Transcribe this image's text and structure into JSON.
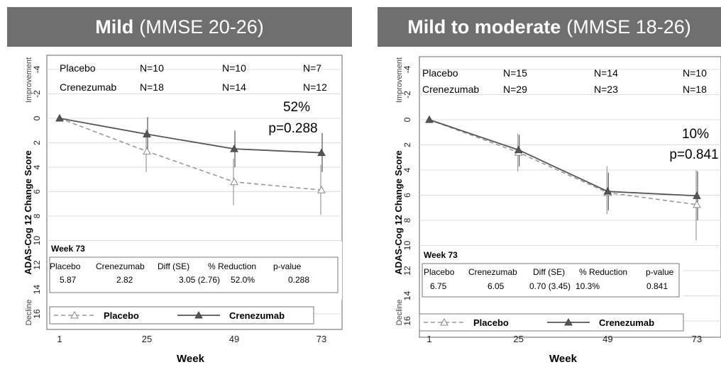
{
  "panels": [
    {
      "title_bold": "Mild",
      "title_rest": "(MMSE 20-26)",
      "counts": {
        "placebo_label": "Placebo",
        "crenezumab_label": "Crenezumab",
        "placebo": [
          "N=10",
          "N=10",
          "N=7"
        ],
        "crenezumab": [
          "N=18",
          "N=14",
          "N=12"
        ]
      },
      "annotation": [
        "52%",
        "p=0.288"
      ],
      "table": {
        "heading": "Week 73",
        "headers": [
          "Placebo",
          "Crenezumab",
          "Diff (SE)",
          "% Reduction",
          "p-value"
        ],
        "values": [
          "5.87",
          "2.82",
          "3.05 (2.76)",
          "52.0%",
          "0.288"
        ]
      }
    },
    {
      "title_bold": "Mild to moderate",
      "title_rest": "(MMSE 18-26)",
      "counts": {
        "placebo_label": "Placebo",
        "crenezumab_label": "Crenezumab",
        "placebo": [
          "N=15",
          "N=14",
          "N=10"
        ],
        "crenezumab": [
          "N=29",
          "N=23",
          "N=18"
        ]
      },
      "annotation": [
        "10%",
        "p=0.841"
      ],
      "table": {
        "heading": "Week 73",
        "headers": [
          "Placebo",
          "Crenezumab",
          "Diff (SE)",
          "% Reduction",
          "p-value"
        ],
        "values": [
          "6.75",
          "6.05",
          "0.70 (3.45)",
          "10.3%",
          "0.841"
        ]
      }
    }
  ],
  "y_axis_label": "ADAS-Cog 12 Change Score",
  "improvement_label": "Improvement",
  "decline_label": "Decline",
  "x_axis_label": "Week",
  "legend": [
    "Placebo",
    "Crenezumab"
  ],
  "chart_data": [
    {
      "type": "line",
      "title": "Mild (MMSE 20-26)",
      "xlabel": "Week",
      "ylabel": "ADAS-Cog 12 Change Score",
      "x": [
        1,
        25,
        49,
        73
      ],
      "y_ticks": [
        -4,
        -2,
        0,
        2,
        4,
        6,
        8,
        10,
        12,
        14,
        16
      ],
      "y_tick_labels": [
        "-4",
        "-2",
        "0",
        "2",
        "4",
        "6",
        "8",
        "10",
        "12",
        "14",
        "16"
      ],
      "ylim": [
        -4.5,
        17
      ],
      "y_inverted": true,
      "grid": true,
      "series": [
        {
          "name": "Placebo",
          "style": "dashed",
          "marker": "open-triangle",
          "color": "#999999",
          "values": [
            0,
            2.7,
            5.2,
            5.87
          ],
          "error_low": [
            0,
            0.9,
            3.3,
            3.8
          ],
          "error_high": [
            0,
            4.4,
            7.1,
            7.9
          ]
        },
        {
          "name": "Crenezumab",
          "style": "solid",
          "marker": "filled-triangle",
          "color": "#555555",
          "values": [
            0,
            1.3,
            2.5,
            2.82
          ],
          "error_low": [
            0,
            -0.1,
            1.0,
            1.2
          ],
          "error_high": [
            0,
            2.7,
            4.0,
            4.4
          ]
        }
      ]
    },
    {
      "type": "line",
      "title": "Mild to moderate (MMSE 18-26)",
      "xlabel": "Week",
      "ylabel": "ADAS-Cog 12 Change Score",
      "x": [
        1,
        25,
        49,
        73
      ],
      "y_ticks": [
        -4,
        -2,
        0,
        2,
        4,
        6,
        8,
        10,
        12,
        14,
        16
      ],
      "y_tick_labels": [
        "-4",
        "-2",
        "0",
        "2",
        "4",
        "6",
        "8",
        "10",
        "12",
        "14",
        "16"
      ],
      "ylim": [
        -4.5,
        17
      ],
      "y_inverted": true,
      "grid": true,
      "series": [
        {
          "name": "Placebo",
          "style": "dashed",
          "marker": "open-triangle",
          "color": "#999999",
          "values": [
            0,
            2.6,
            5.8,
            6.75
          ],
          "error_low": [
            0,
            1.1,
            3.7,
            4.0
          ],
          "error_high": [
            0,
            4.1,
            7.5,
            9.6
          ]
        },
        {
          "name": "Crenezumab",
          "style": "solid",
          "marker": "filled-triangle",
          "color": "#555555",
          "values": [
            0,
            2.4,
            5.7,
            6.05
          ],
          "error_low": [
            0,
            1.2,
            4.2,
            4.1
          ],
          "error_high": [
            0,
            3.7,
            7.2,
            8.0
          ]
        }
      ]
    }
  ]
}
